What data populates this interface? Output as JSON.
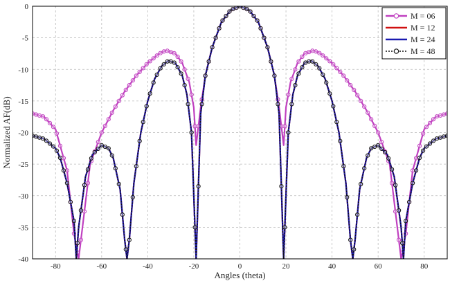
{
  "chart_data": {
    "type": "line",
    "xlabel": "Angles (theta)",
    "ylabel": "Normalized AF(dB)",
    "xlim": [
      -90,
      90
    ],
    "ylim": [
      -40,
      0
    ],
    "xticks": [
      -80,
      -60,
      -40,
      -20,
      0,
      20,
      40,
      60,
      80
    ],
    "yticks": [
      0,
      -5,
      -10,
      -15,
      -20,
      -25,
      -30,
      -35,
      -40
    ],
    "grid": true,
    "legend_position": "top-right",
    "series": [
      {
        "name": "M = 06",
        "color": "#c040c0",
        "line_style": "solid",
        "marker": "circle-open",
        "description_points": {
          "x": [
            -90,
            -85,
            -80,
            -75,
            -72,
            -70,
            -65,
            -60,
            -55,
            -50,
            -45,
            -40,
            -35,
            -32,
            -28,
            -25,
            -22,
            -20,
            -19,
            -17,
            -15,
            -12,
            -8,
            -4,
            0,
            4,
            8,
            12,
            15,
            17,
            19,
            20,
            22,
            25,
            28,
            32,
            35,
            40,
            45,
            50,
            55,
            60,
            65,
            70,
            72,
            75,
            80,
            85,
            90
          ],
          "y": [
            -17,
            -17.5,
            -19.5,
            -26,
            -36,
            -40,
            -25,
            -20,
            -16.5,
            -13.5,
            -11,
            -9,
            -7.5,
            -7,
            -7.5,
            -9,
            -12,
            -16,
            -22,
            -16,
            -11,
            -6.5,
            -2.5,
            -0.6,
            0,
            -0.6,
            -2.5,
            -6.5,
            -11,
            -16,
            -22,
            -16,
            -12,
            -9,
            -7.5,
            -7,
            -7.5,
            -9,
            -11,
            -13.5,
            -16.5,
            -20,
            -25,
            -40,
            -36,
            -26,
            -19.5,
            -17.5,
            -17
          ]
        }
      },
      {
        "name": "M = 12",
        "color": "#d01010",
        "line_style": "solid",
        "marker": "none",
        "description_points": {
          "x": [
            -90,
            -85,
            -80,
            -78,
            -75,
            -72,
            -71,
            -70,
            -67,
            -64,
            -60,
            -57,
            -55,
            -52,
            -50,
            -49,
            -48,
            -46,
            -43,
            -40,
            -37,
            -34,
            -31,
            -28,
            -25,
            -23,
            -21,
            -19.5,
            -19,
            -17,
            -15,
            -12,
            -8,
            -4,
            0,
            4,
            8,
            12,
            15,
            17,
            19,
            19.5,
            21,
            23,
            25,
            28,
            31,
            34,
            37,
            40,
            43,
            46,
            48,
            49,
            50,
            52,
            55,
            57,
            60,
            64,
            67,
            70,
            71,
            72,
            75,
            78,
            80,
            85,
            90
          ],
          "y": [
            -20.5,
            -21,
            -22.5,
            -24,
            -28,
            -34,
            -40,
            -35,
            -27,
            -23.5,
            -22,
            -22.5,
            -24,
            -29,
            -37,
            -40,
            -37,
            -28,
            -20,
            -15,
            -11.5,
            -9.5,
            -8.6,
            -9,
            -11,
            -14,
            -20,
            -35,
            -40,
            -17,
            -11,
            -6.5,
            -2.5,
            -0.6,
            0,
            -0.6,
            -2.5,
            -6.5,
            -11,
            -17,
            -40,
            -35,
            -20,
            -14,
            -11,
            -9,
            -8.6,
            -9.5,
            -11.5,
            -15,
            -20,
            -28,
            -37,
            -40,
            -37,
            -29,
            -24,
            -22.5,
            -22,
            -23.5,
            -27,
            -35,
            -40,
            -34,
            -28,
            -24,
            -22.5,
            -21,
            -20.5
          ]
        }
      },
      {
        "name": "M = 24",
        "color": "#1a1ab0",
        "line_style": "solid",
        "marker": "none",
        "description_points": {
          "x": [
            -90,
            -85,
            -80,
            -78,
            -75,
            -72,
            -71,
            -70,
            -67,
            -64,
            -60,
            -57,
            -55,
            -52,
            -50,
            -49,
            -48,
            -46,
            -43,
            -40,
            -37,
            -34,
            -31,
            -28,
            -25,
            -23,
            -21,
            -19.5,
            -19,
            -17,
            -15,
            -12,
            -8,
            -4,
            0,
            4,
            8,
            12,
            15,
            17,
            19,
            19.5,
            21,
            23,
            25,
            28,
            31,
            34,
            37,
            40,
            43,
            46,
            48,
            49,
            50,
            52,
            55,
            57,
            60,
            64,
            67,
            70,
            71,
            72,
            75,
            78,
            80,
            85,
            90
          ],
          "y": [
            -20.5,
            -21,
            -22.5,
            -24,
            -28,
            -34,
            -40,
            -35,
            -27,
            -23.5,
            -22,
            -22.5,
            -24,
            -29,
            -37,
            -40,
            -37,
            -28,
            -20,
            -15,
            -11.5,
            -9.5,
            -8.6,
            -9,
            -11,
            -14,
            -20,
            -35,
            -40,
            -17,
            -11,
            -6.5,
            -2.5,
            -0.6,
            0,
            -0.6,
            -2.5,
            -6.5,
            -11,
            -17,
            -40,
            -35,
            -20,
            -14,
            -11,
            -9,
            -8.6,
            -9.5,
            -11.5,
            -15,
            -20,
            -28,
            -37,
            -40,
            -37,
            -29,
            -24,
            -22.5,
            -22,
            -23.5,
            -27,
            -35,
            -40,
            -34,
            -28,
            -24,
            -22.5,
            -21,
            -20.5
          ]
        }
      },
      {
        "name": "M = 48",
        "color": "#111111",
        "line_style": "dotted",
        "marker": "circle-open",
        "description_points": {
          "x": [
            -90,
            -85,
            -80,
            -78,
            -75,
            -72,
            -71,
            -70,
            -67,
            -64,
            -60,
            -57,
            -55,
            -52,
            -50,
            -49,
            -48,
            -46,
            -43,
            -40,
            -37,
            -34,
            -31,
            -28,
            -25,
            -23,
            -21,
            -19.5,
            -19,
            -17,
            -15,
            -12,
            -8,
            -4,
            0,
            4,
            8,
            12,
            15,
            17,
            19,
            19.5,
            21,
            23,
            25,
            28,
            31,
            34,
            37,
            40,
            43,
            46,
            48,
            49,
            50,
            52,
            55,
            57,
            60,
            64,
            67,
            70,
            71,
            72,
            75,
            78,
            80,
            85,
            90
          ],
          "y": [
            -20.5,
            -21,
            -22.5,
            -24,
            -28,
            -34,
            -40,
            -35,
            -27,
            -23.5,
            -22,
            -22.5,
            -24,
            -29,
            -37,
            -40,
            -37,
            -28,
            -20,
            -15,
            -11.5,
            -9.5,
            -8.6,
            -9,
            -11,
            -14,
            -20,
            -35,
            -40,
            -17,
            -11,
            -6.5,
            -2.5,
            -0.6,
            0,
            -0.6,
            -2.5,
            -6.5,
            -11,
            -17,
            -40,
            -35,
            -20,
            -14,
            -11,
            -9,
            -8.6,
            -9.5,
            -11.5,
            -15,
            -20,
            -28,
            -37,
            -40,
            -37,
            -29,
            -24,
            -22.5,
            -22,
            -23.5,
            -27,
            -35,
            -40,
            -34,
            -28,
            -24,
            -22.5,
            -21,
            -20.5
          ]
        }
      }
    ]
  }
}
